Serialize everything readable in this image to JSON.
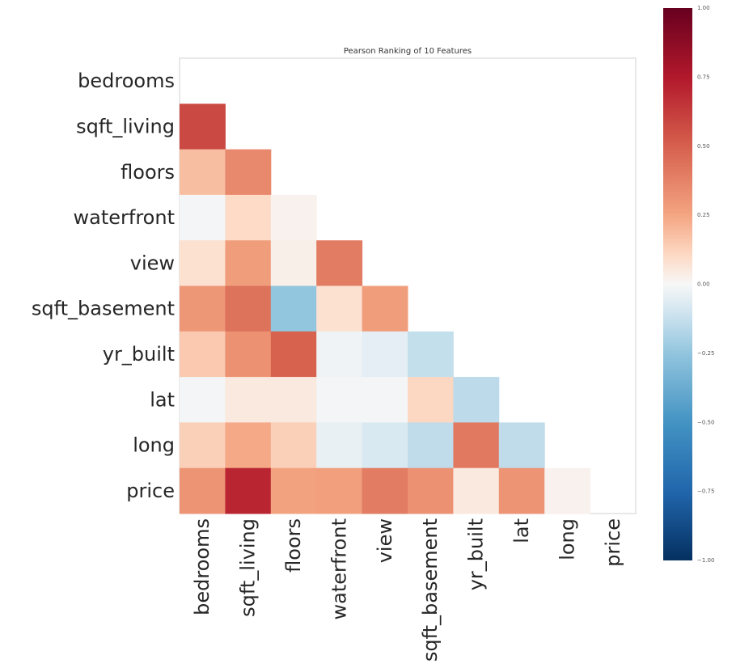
{
  "chart_data": {
    "type": "heatmap",
    "title": "Pearson Ranking of 10 Features",
    "features": [
      "bedrooms",
      "sqft_living",
      "floors",
      "waterfront",
      "view",
      "sqft_basement",
      "yr_built",
      "lat",
      "long",
      "price"
    ],
    "matrix": [
      [
        null,
        null,
        null,
        null,
        null,
        null,
        null,
        null,
        null,
        null
      ],
      [
        0.58,
        null,
        null,
        null,
        null,
        null,
        null,
        null,
        null,
        null
      ],
      [
        0.18,
        0.35,
        null,
        null,
        null,
        null,
        null,
        null,
        null,
        null
      ],
      [
        -0.01,
        0.1,
        0.02,
        null,
        null,
        null,
        null,
        null,
        null,
        null
      ],
      [
        0.08,
        0.28,
        0.03,
        0.4,
        null,
        null,
        null,
        null,
        null,
        null
      ],
      [
        0.3,
        0.43,
        -0.25,
        0.08,
        0.28,
        null,
        null,
        null,
        null,
        null
      ],
      [
        0.15,
        0.32,
        0.49,
        -0.02,
        -0.05,
        -0.13,
        null,
        null,
        null,
        null
      ],
      [
        -0.01,
        0.05,
        0.05,
        -0.01,
        -0.01,
        0.11,
        -0.15,
        null,
        null,
        null
      ],
      [
        0.13,
        0.24,
        0.13,
        -0.04,
        -0.08,
        -0.14,
        0.41,
        -0.14,
        null,
        null
      ],
      [
        0.31,
        0.7,
        0.26,
        0.27,
        0.4,
        0.32,
        0.05,
        0.31,
        0.02,
        null
      ]
    ],
    "colorbar": {
      "range": [
        -1.0,
        1.0
      ],
      "ticks": [
        1.0,
        0.75,
        0.5,
        0.25,
        0.0,
        -0.25,
        -0.5,
        -0.75,
        -1.0
      ],
      "tick_labels": [
        "1.00",
        "0.75",
        "0.50",
        "0.25",
        "0.00",
        "−0.25",
        "−0.50",
        "−0.75",
        "−1.00"
      ],
      "colormap": "RdBu_r"
    },
    "grid": false
  }
}
